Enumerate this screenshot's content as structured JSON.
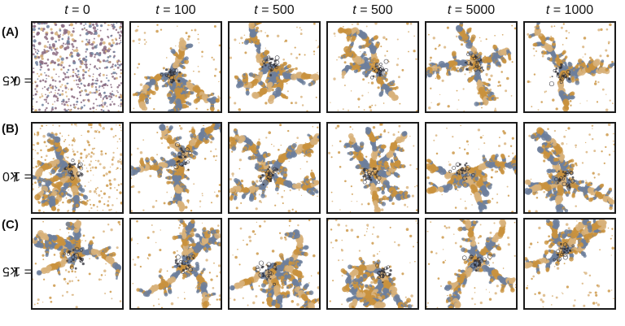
{
  "figure": {
    "columns": [
      {
        "var": "t",
        "eq": " = 0"
      },
      {
        "var": "t",
        "eq": " = 100"
      },
      {
        "var": "t",
        "eq": " = 500"
      },
      {
        "var": "t",
        "eq": " = 500"
      },
      {
        "var": "t",
        "eq": " = 5000"
      },
      {
        "var": "t",
        "eq": " = 1000"
      }
    ],
    "rows": [
      {
        "letter": "(A)",
        "var": "k",
        "eq": " = 0.5"
      },
      {
        "letter": "(B)",
        "var": "k",
        "eq": " = 1.0"
      },
      {
        "letter": "(C)",
        "var": "k",
        "eq": " = 1.5"
      }
    ],
    "colors": {
      "orange": "#c9923e",
      "tan": "#d8b27a",
      "slate": "#6d7f9c",
      "dark": "#2b2b33",
      "mauve": "#8a6a80",
      "frame": "#1a1a1a"
    }
  }
}
